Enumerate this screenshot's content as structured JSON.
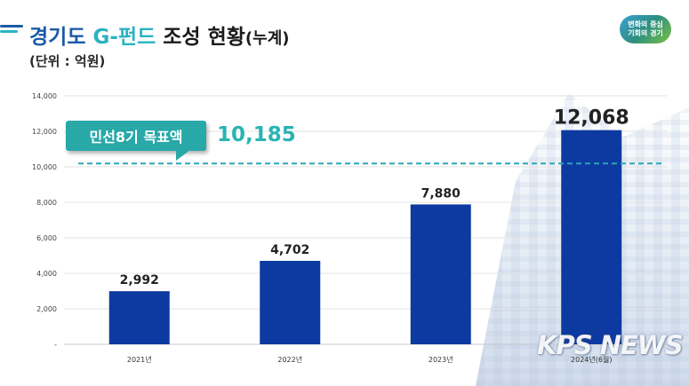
{
  "header": {
    "title_part1": "경기도 ",
    "title_part2": "G-펀드",
    "title_part3": " 조성 현황",
    "title_suffix": "(누계)",
    "unit": "(단위 : 억원)"
  },
  "logo": {
    "line1": "변화의 중심",
    "line2": "기회의 경기"
  },
  "callout": {
    "label": "민선8기 목표액",
    "value": "10,185"
  },
  "watermark": "KPS NEWS",
  "colors": {
    "bar": "#0d3aa0",
    "target_line": "#2aa6b8",
    "title_blue": "#1c5aa8",
    "title_teal": "#2ab3c2",
    "callout": "#29a8a8"
  },
  "chart_data": {
    "type": "bar",
    "categories": [
      "2021년",
      "2022년",
      "2023년",
      "2024년(6월)"
    ],
    "values": [
      2992,
      4702,
      7880,
      12068
    ],
    "value_labels": [
      "2,992",
      "4,702",
      "7,880",
      "12,068"
    ],
    "ylim": [
      0,
      14000
    ],
    "yticks": [
      0,
      2000,
      4000,
      6000,
      8000,
      10000,
      12000,
      14000
    ],
    "ytick_labels": [
      "-",
      "2,000",
      "4,000",
      "6,000",
      "8,000",
      "10,000",
      "12,000",
      "14,000"
    ],
    "target": 10185,
    "grid": true,
    "legend": "none"
  }
}
